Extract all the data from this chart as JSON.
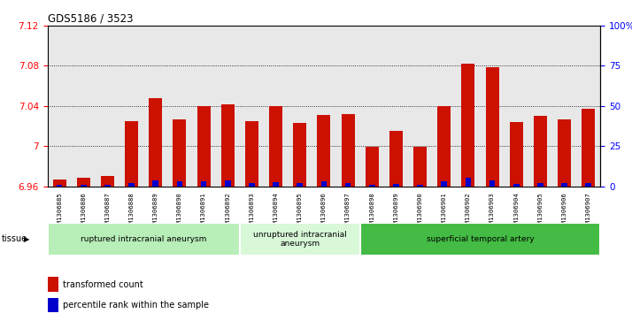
{
  "title": "GDS5186 / 3523",
  "samples": [
    "GSM1306885",
    "GSM1306886",
    "GSM1306887",
    "GSM1306888",
    "GSM1306889",
    "GSM1306890",
    "GSM1306891",
    "GSM1306892",
    "GSM1306893",
    "GSM1306894",
    "GSM1306895",
    "GSM1306896",
    "GSM1306897",
    "GSM1306898",
    "GSM1306899",
    "GSM1306900",
    "GSM1306901",
    "GSM1306902",
    "GSM1306903",
    "GSM1306904",
    "GSM1306905",
    "GSM1306906",
    "GSM1306907"
  ],
  "transformed_count": [
    6.967,
    6.968,
    6.97,
    7.025,
    7.048,
    7.027,
    7.04,
    7.042,
    7.025,
    7.04,
    7.023,
    7.031,
    7.032,
    6.999,
    7.015,
    6.999,
    7.04,
    7.082,
    7.079,
    7.024,
    7.03,
    7.027,
    7.037
  ],
  "percentile_rank": [
    2,
    3,
    3,
    5,
    10,
    8,
    8,
    10,
    6,
    7,
    5,
    8,
    6,
    3,
    4,
    3,
    8,
    15,
    10,
    4,
    5,
    5,
    6
  ],
  "groups": [
    {
      "name": "ruptured intracranial aneurysm",
      "start": 0,
      "end": 8,
      "color": "#b8eeb8"
    },
    {
      "name": "unruptured intracranial\naneurysm",
      "start": 8,
      "end": 13,
      "color": "#d8f8d8"
    },
    {
      "name": "superficial temporal artery",
      "start": 13,
      "end": 23,
      "color": "#44bb44"
    }
  ],
  "y_min": 6.96,
  "y_max": 7.12,
  "y_ticks": [
    6.96,
    7.0,
    7.04,
    7.08,
    7.12
  ],
  "y_tick_labels": [
    "6.96",
    "7",
    "7.04",
    "7.08",
    "7.12"
  ],
  "y2_ticks": [
    0,
    25,
    50,
    75,
    100
  ],
  "y2_labels": [
    "0",
    "25",
    "50",
    "75",
    "100%"
  ],
  "bar_color_red": "#cc1100",
  "bar_color_blue": "#0000cc",
  "plot_bg": "#e8e8e8",
  "bar_width": 0.55
}
